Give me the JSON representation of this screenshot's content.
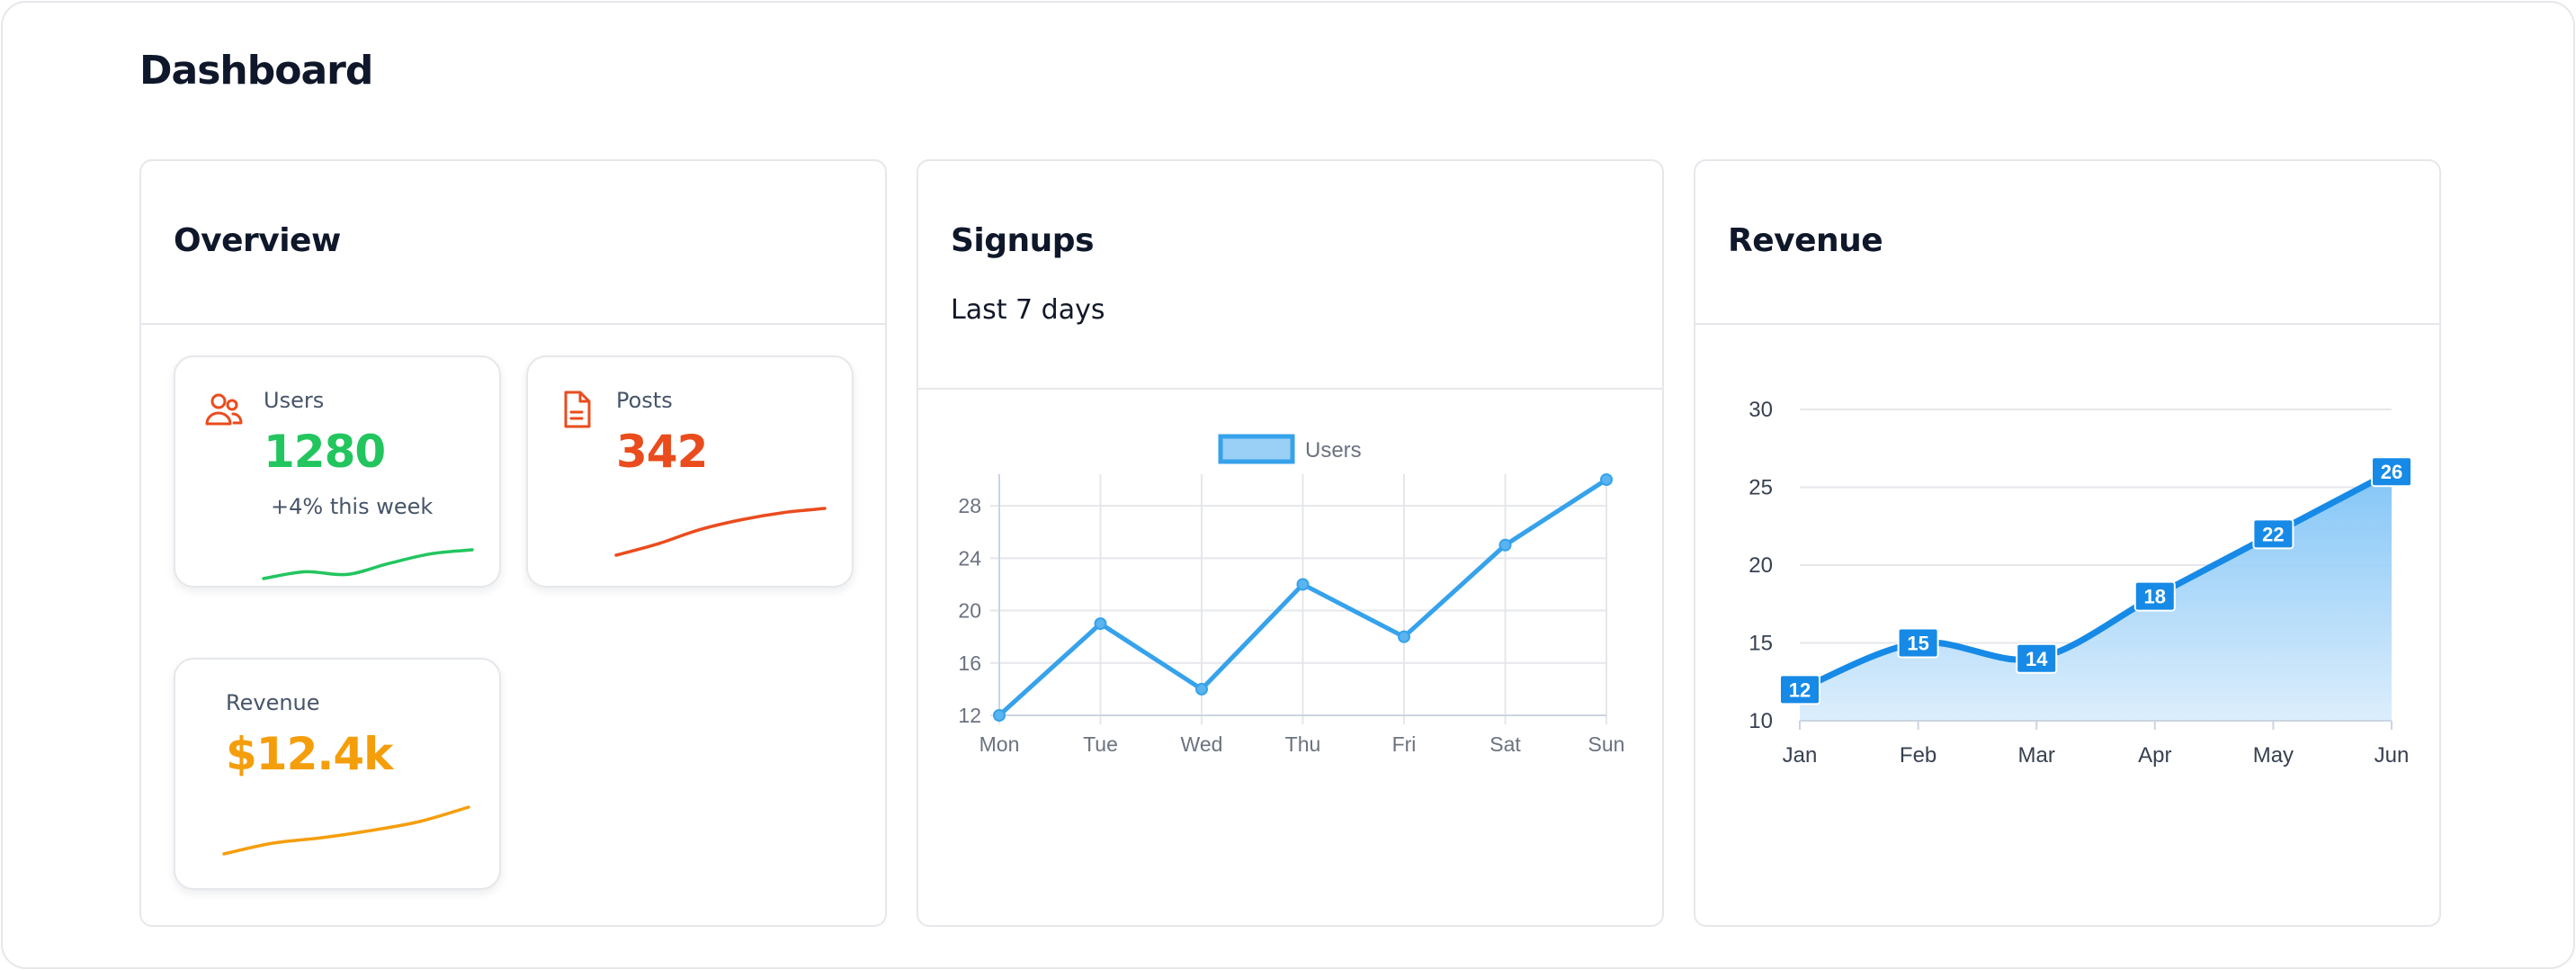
{
  "page": {
    "title": "Dashboard"
  },
  "overview": {
    "title": "Overview",
    "cards": {
      "users": {
        "label": "Users",
        "value": "1280",
        "delta": "+4% this week",
        "icon": "users-icon",
        "color": "#22c55e",
        "spark": [
          3,
          4,
          3.6,
          5.2,
          6.6,
          7.2
        ]
      },
      "posts": {
        "label": "Posts",
        "value": "342",
        "icon": "document-icon",
        "color": "#ea4c1d",
        "spark": [
          2,
          3.6,
          5.6,
          7,
          8,
          8.6
        ]
      },
      "revenue": {
        "label": "Revenue",
        "value": "$12.4k",
        "color": "#f59e0b",
        "spark": [
          2,
          3.2,
          3.8,
          4.6,
          5.6,
          7.2
        ]
      }
    }
  },
  "signups": {
    "title": "Signups",
    "subtitle": "Last 7 days",
    "chart_data": {
      "type": "line",
      "categories": [
        "Mon",
        "Tue",
        "Wed",
        "Thu",
        "Fri",
        "Sat",
        "Sun"
      ],
      "series": [
        {
          "name": "Users",
          "values": [
            12,
            19,
            14,
            22,
            18,
            25,
            30
          ],
          "color": "#36a2eb"
        }
      ],
      "y_ticks": [
        12,
        16,
        20,
        24,
        28
      ],
      "ylim": [
        12,
        30
      ],
      "grid": true,
      "legend": "top-center"
    }
  },
  "revenue": {
    "title": "Revenue",
    "chart_data": {
      "type": "area",
      "categories": [
        "Jan",
        "Feb",
        "Mar",
        "Apr",
        "May",
        "Jun"
      ],
      "series": [
        {
          "values": [
            12,
            15,
            14,
            18,
            22,
            26
          ],
          "color": "#168ae6"
        }
      ],
      "y_ticks": [
        10,
        15,
        20,
        25,
        30
      ],
      "ylim": [
        10,
        30
      ],
      "grid": true,
      "data_labels": true
    }
  }
}
